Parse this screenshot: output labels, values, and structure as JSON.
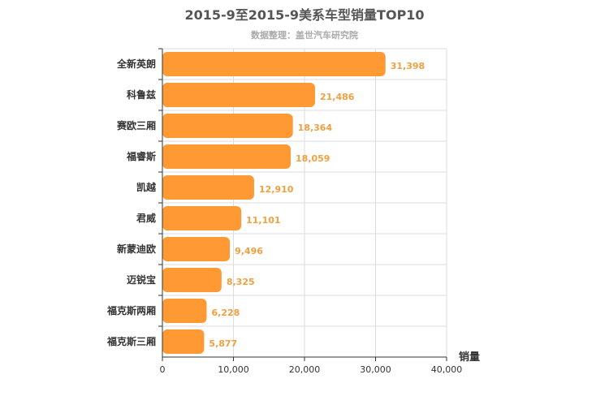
{
  "chart_data": {
    "type": "bar",
    "orientation": "horizontal",
    "title": "2015-9至2015-9美系车型销量TOP10",
    "subtitle": "数据整理：盖世汽车研究院",
    "xlabel": "销量",
    "xlim": [
      0,
      40000
    ],
    "xticks": [
      0,
      10000,
      20000,
      30000,
      40000
    ],
    "xtick_labels": [
      "0",
      "10,000",
      "20,000",
      "30,000",
      "40,000"
    ],
    "grid": true,
    "bar_color": "#ff9933",
    "label_color": "#f0a040",
    "categories": [
      "全新英朗",
      "科鲁兹",
      "赛欧三厢",
      "福睿斯",
      "凯越",
      "君威",
      "新蒙迪欧",
      "迈锐宝",
      "福克斯两厢",
      "福克斯三厢"
    ],
    "values": [
      31398,
      21486,
      18364,
      18059,
      12910,
      11101,
      9496,
      8325,
      6228,
      5877
    ],
    "value_labels": [
      "31,398",
      "21,486",
      "18,364",
      "18,059",
      "12,910",
      "11,101",
      "9,496",
      "8,325",
      "6,228",
      "5,877"
    ]
  }
}
